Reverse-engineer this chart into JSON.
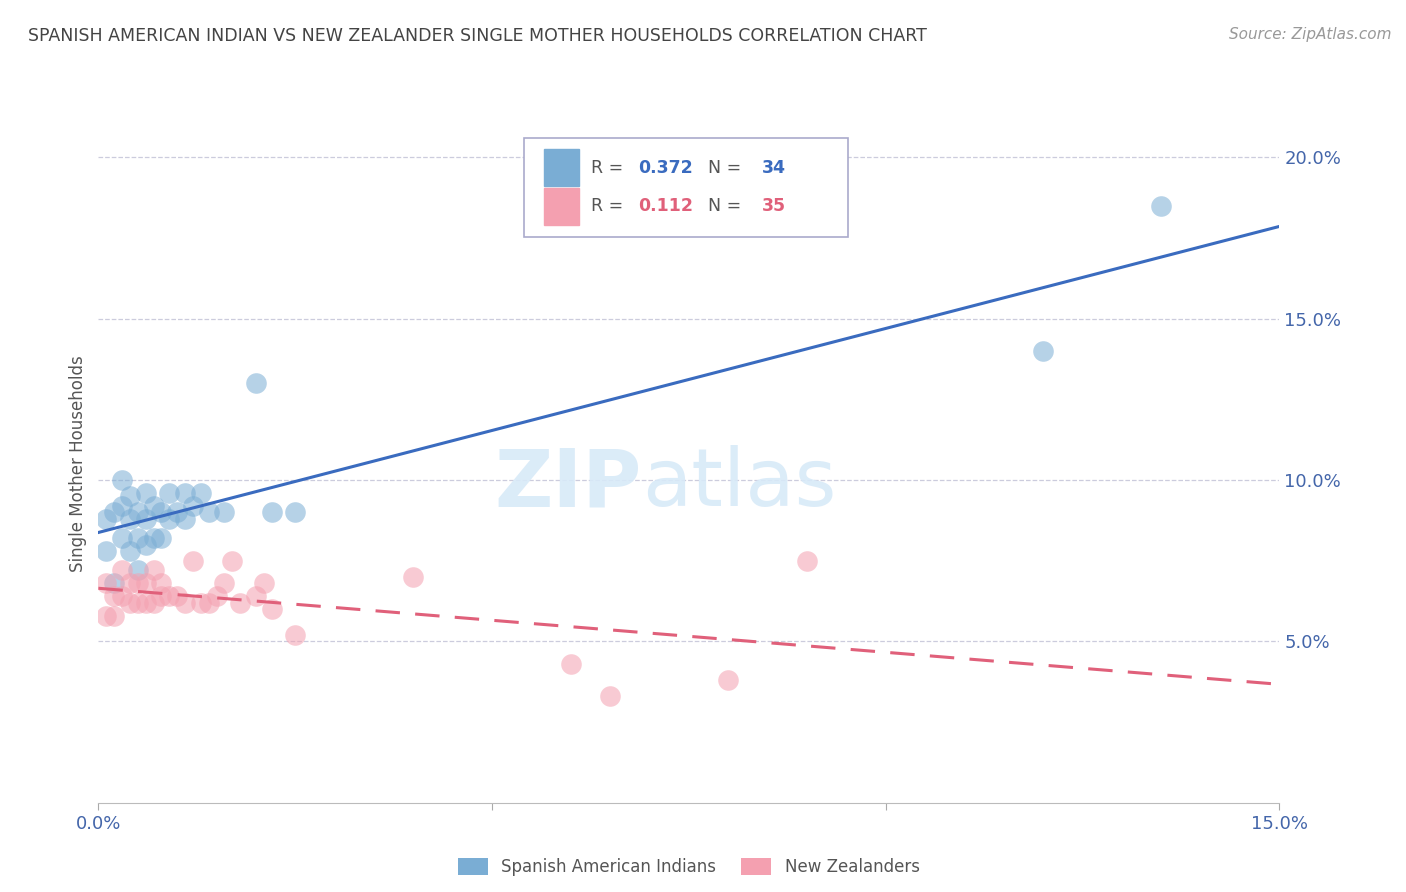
{
  "title": "SPANISH AMERICAN INDIAN VS NEW ZEALANDER SINGLE MOTHER HOUSEHOLDS CORRELATION CHART",
  "source": "Source: ZipAtlas.com",
  "ylabel": "Single Mother Households",
  "xlim": [
    0,
    0.15
  ],
  "ylim": [
    0,
    0.21
  ],
  "xticks": [
    0.0,
    0.05,
    0.1,
    0.15
  ],
  "xtick_labels": [
    "0.0%",
    "",
    "",
    "15.0%"
  ],
  "yticks": [
    0.05,
    0.1,
    0.15,
    0.2
  ],
  "blue_R": 0.372,
  "blue_N": 34,
  "pink_R": 0.112,
  "pink_N": 35,
  "blue_color": "#7AADD4",
  "pink_color": "#F4A0B0",
  "blue_line_color": "#3A6BBF",
  "pink_line_color": "#E0607A",
  "legend_label_blue": "Spanish American Indians",
  "legend_label_pink": "New Zealanders",
  "watermark_zip": "ZIP",
  "watermark_atlas": "atlas",
  "background_color": "#FFFFFF",
  "grid_color": "#CCCCDD",
  "title_color": "#444444",
  "tick_color": "#4466AA",
  "blue_x": [
    0.001,
    0.001,
    0.002,
    0.002,
    0.003,
    0.003,
    0.003,
    0.004,
    0.004,
    0.004,
    0.005,
    0.005,
    0.005,
    0.006,
    0.006,
    0.006,
    0.007,
    0.007,
    0.008,
    0.008,
    0.009,
    0.009,
    0.01,
    0.011,
    0.011,
    0.012,
    0.013,
    0.014,
    0.016,
    0.02,
    0.022,
    0.025,
    0.12,
    0.135
  ],
  "blue_y": [
    0.078,
    0.088,
    0.068,
    0.09,
    0.082,
    0.092,
    0.1,
    0.078,
    0.088,
    0.095,
    0.072,
    0.082,
    0.09,
    0.08,
    0.088,
    0.096,
    0.082,
    0.092,
    0.082,
    0.09,
    0.088,
    0.096,
    0.09,
    0.088,
    0.096,
    0.092,
    0.096,
    0.09,
    0.09,
    0.13,
    0.09,
    0.09,
    0.14,
    0.185
  ],
  "pink_x": [
    0.001,
    0.001,
    0.002,
    0.002,
    0.003,
    0.003,
    0.004,
    0.004,
    0.005,
    0.005,
    0.006,
    0.006,
    0.007,
    0.007,
    0.008,
    0.008,
    0.009,
    0.01,
    0.011,
    0.012,
    0.013,
    0.014,
    0.015,
    0.016,
    0.017,
    0.018,
    0.02,
    0.021,
    0.022,
    0.025,
    0.04,
    0.06,
    0.065,
    0.08,
    0.09
  ],
  "pink_y": [
    0.058,
    0.068,
    0.058,
    0.064,
    0.064,
    0.072,
    0.062,
    0.068,
    0.062,
    0.068,
    0.062,
    0.068,
    0.062,
    0.072,
    0.064,
    0.068,
    0.064,
    0.064,
    0.062,
    0.075,
    0.062,
    0.062,
    0.064,
    0.068,
    0.075,
    0.062,
    0.064,
    0.068,
    0.06,
    0.052,
    0.07,
    0.043,
    0.033,
    0.038,
    0.075
  ]
}
